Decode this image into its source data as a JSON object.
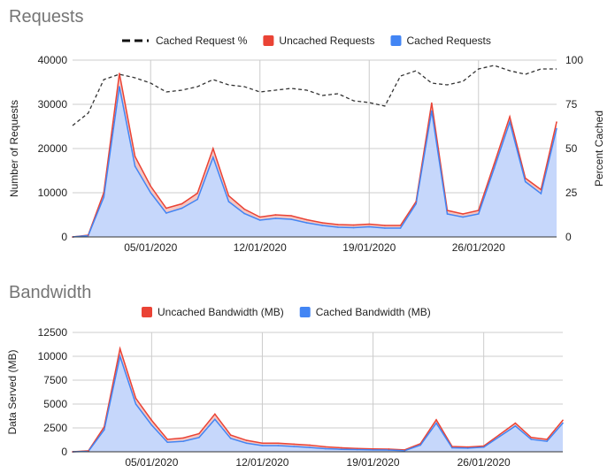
{
  "chart_data": [
    {
      "type": "area",
      "title": "Requests",
      "ylabel": "Number of Requests",
      "y2label": "Percent Cached",
      "ylim": [
        0,
        40000
      ],
      "y2lim": [
        0,
        100
      ],
      "yticks": [
        "0",
        "10000",
        "20000",
        "30000",
        "40000"
      ],
      "y2ticks": [
        "0",
        "25",
        "50",
        "75",
        "100"
      ],
      "xticks": [
        {
          "label": "05/01/2020",
          "index": 5
        },
        {
          "label": "12/01/2020",
          "index": 12
        },
        {
          "label": "19/01/2020",
          "index": 19
        },
        {
          "label": "26/01/2020",
          "index": 26
        }
      ],
      "legend_position": "top",
      "stacked": true,
      "x": [
        "31/12",
        "01/01",
        "02/01",
        "03/01",
        "04/01",
        "05/01",
        "06/01",
        "07/01",
        "08/01",
        "09/01",
        "10/01",
        "11/01",
        "12/01",
        "13/01",
        "14/01",
        "15/01",
        "16/01",
        "17/01",
        "18/01",
        "19/01",
        "20/01",
        "21/01",
        "22/01",
        "23/01",
        "24/01",
        "25/01",
        "26/01",
        "27/01",
        "28/01",
        "29/01",
        "30/01",
        "31/01"
      ],
      "series": [
        {
          "name": "Cached Requests",
          "color": "#4285f4",
          "values": [
            0,
            300,
            9000,
            34000,
            16000,
            10000,
            5400,
            6500,
            8500,
            18000,
            8000,
            5300,
            3800,
            4200,
            4000,
            3200,
            2600,
            2200,
            2100,
            2300,
            2000,
            2000,
            7500,
            28500,
            5200,
            4500,
            5200,
            15500,
            26000,
            12500,
            9800,
            24500
          ]
        },
        {
          "name": "Uncached Requests",
          "color": "#ea4335",
          "values": [
            0,
            100,
            1000,
            3000,
            2200,
            1500,
            1100,
            1000,
            1400,
            2000,
            1300,
            1000,
            700,
            800,
            800,
            700,
            600,
            600,
            600,
            600,
            600,
            600,
            500,
            1800,
            800,
            700,
            800,
            1000,
            1200,
            800,
            900,
            1500
          ]
        },
        {
          "name": "Cached Request %",
          "color": "#333333",
          "axis": "right",
          "style": "dashed",
          "values": [
            63,
            70,
            89,
            92,
            90,
            87,
            82,
            83,
            85,
            89,
            86,
            85,
            82,
            83,
            84,
            83,
            80,
            81,
            77,
            76,
            74,
            91,
            94,
            87,
            86,
            88,
            95,
            97,
            94,
            92,
            95,
            95
          ]
        }
      ]
    },
    {
      "type": "area",
      "title": "Bandwidth",
      "ylabel": "Data Served (MB)",
      "ylim": [
        0,
        12500
      ],
      "yticks": [
        "0",
        "2500",
        "5000",
        "7500",
        "10000",
        "12500"
      ],
      "xticks": [
        {
          "label": "05/01/2020",
          "index": 5
        },
        {
          "label": "12/01/2020",
          "index": 12
        },
        {
          "label": "19/01/2020",
          "index": 19
        },
        {
          "label": "26/01/2020",
          "index": 26
        }
      ],
      "legend_position": "top",
      "stacked": true,
      "x": [
        "31/12",
        "01/01",
        "02/01",
        "03/01",
        "04/01",
        "05/01",
        "06/01",
        "07/01",
        "08/01",
        "09/01",
        "10/01",
        "11/01",
        "12/01",
        "13/01",
        "14/01",
        "15/01",
        "16/01",
        "17/01",
        "18/01",
        "19/01",
        "20/01",
        "21/01",
        "22/01",
        "23/01",
        "24/01",
        "25/01",
        "26/01",
        "27/01",
        "28/01",
        "29/01",
        "30/01",
        "31/01"
      ],
      "series": [
        {
          "name": "Cached Bandwidth (MB)",
          "color": "#4285f4",
          "values": [
            0,
            50,
            2300,
            10000,
            5000,
            2800,
            1000,
            1100,
            1500,
            3400,
            1400,
            900,
            650,
            650,
            550,
            450,
            320,
            260,
            230,
            200,
            180,
            120,
            700,
            3000,
            420,
            380,
            480,
            1600,
            2700,
            1300,
            1100,
            3000
          ]
        },
        {
          "name": "Uncached Bandwidth (MB)",
          "color": "#ea4335",
          "values": [
            0,
            50,
            300,
            800,
            600,
            500,
            300,
            350,
            400,
            550,
            350,
            300,
            250,
            250,
            250,
            250,
            200,
            160,
            120,
            100,
            100,
            80,
            150,
            350,
            130,
            120,
            120,
            200,
            300,
            200,
            200,
            300
          ]
        }
      ]
    }
  ]
}
